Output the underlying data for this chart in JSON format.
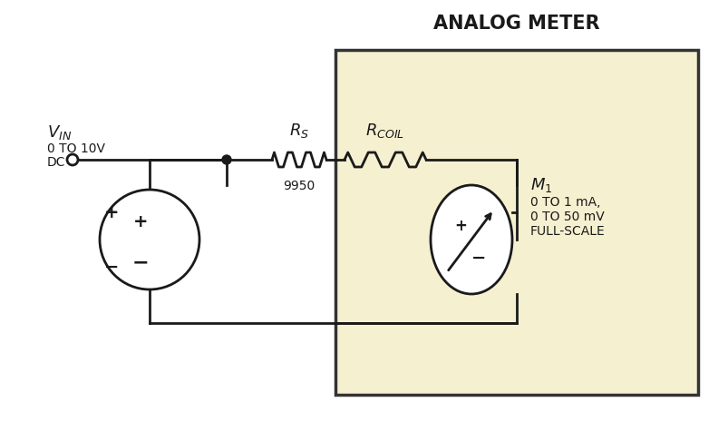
{
  "title": "ANALOG METER",
  "bg_color": "#ffffff",
  "meter_box_color": "#f5f0d0",
  "meter_box_border": "#333333",
  "line_color": "#1a1a1a",
  "text_color": "#1a1a1a",
  "vin_label": "V",
  "vin_sub": "IN",
  "vin_range": "0 TO 10V",
  "vin_dc": "DC",
  "rs_label": "R",
  "rs_sub": "S",
  "rs_value": "9950",
  "rcoil_label": "R",
  "rcoil_sub": "COIL",
  "m1_label": "M",
  "m1_sub": "1",
  "m1_range1": "0 TO 1 mA,",
  "m1_range2": "0 TO 50 mV",
  "m1_range3": "FULL-SCALE"
}
